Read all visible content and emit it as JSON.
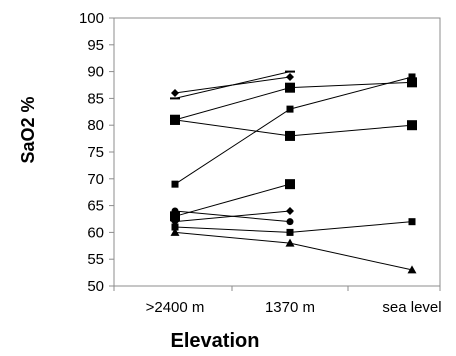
{
  "chart_data": {
    "type": "line",
    "xlabel": "Elevation",
    "ylabel": "SaO2 %",
    "categories": [
      ">2400 m",
      "1370 m",
      "sea level"
    ],
    "ylim": [
      50,
      100
    ],
    "yticks": [
      50,
      55,
      60,
      65,
      70,
      75,
      80,
      85,
      90,
      95,
      100
    ],
    "grid": false,
    "legend": "none",
    "line_color": "#000000",
    "series": [
      {
        "marker": "diamond",
        "values": [
          86,
          89,
          null
        ]
      },
      {
        "marker": "dash",
        "values": [
          85,
          90,
          null
        ]
      },
      {
        "marker": "square-large",
        "values": [
          81,
          87,
          88
        ]
      },
      {
        "marker": "square-small",
        "values": [
          69,
          83,
          89
        ]
      },
      {
        "marker": "square-large",
        "values": [
          81,
          78,
          80
        ]
      },
      {
        "marker": "square-large",
        "values": [
          63,
          69,
          null
        ]
      },
      {
        "marker": "diamond",
        "values": [
          62,
          64,
          null
        ]
      },
      {
        "marker": "circle",
        "values": [
          64,
          62,
          null
        ]
      },
      {
        "marker": "square-small",
        "values": [
          61,
          60,
          62
        ]
      },
      {
        "marker": "triangle",
        "values": [
          60,
          58,
          53
        ]
      }
    ]
  }
}
